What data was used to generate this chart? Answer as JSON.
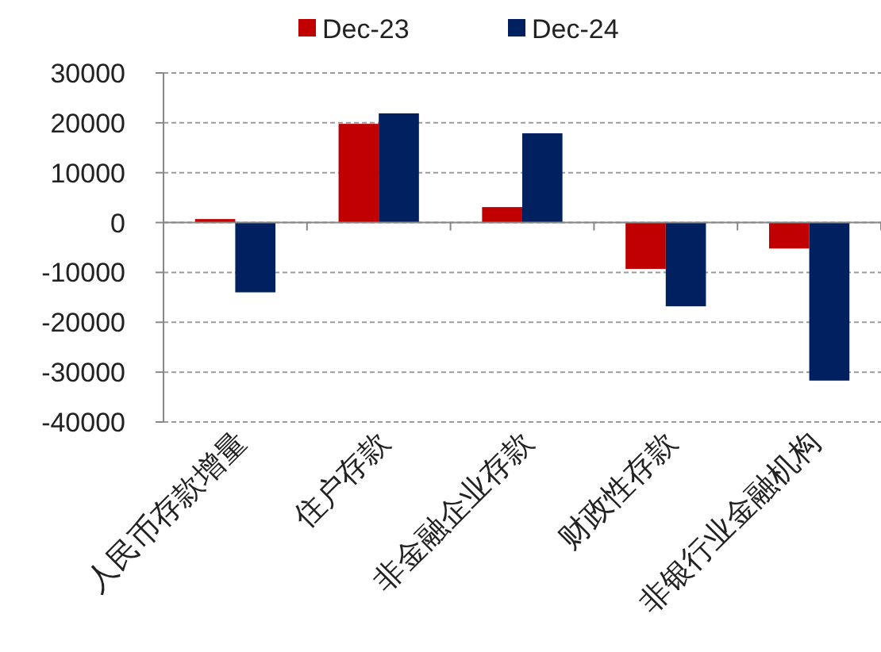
{
  "chart_data": {
    "type": "bar",
    "categories": [
      "人民币存款增量",
      "住户存款",
      "非金融企业存款",
      "财政性存款",
      "非银行业金融机构"
    ],
    "series": [
      {
        "name": "Dec-23",
        "color": "#c00000",
        "values": [
          700,
          19800,
          3100,
          -9300,
          -5200
        ]
      },
      {
        "name": "Dec-24",
        "color": "#002060",
        "values": [
          -14000,
          21900,
          17900,
          -16800,
          -31700
        ]
      }
    ],
    "ylim": [
      -40000,
      30000
    ],
    "yticks": [
      -40000,
      -30000,
      -20000,
      -10000,
      0,
      10000,
      20000,
      30000
    ],
    "grid": "y",
    "legend": "top"
  }
}
